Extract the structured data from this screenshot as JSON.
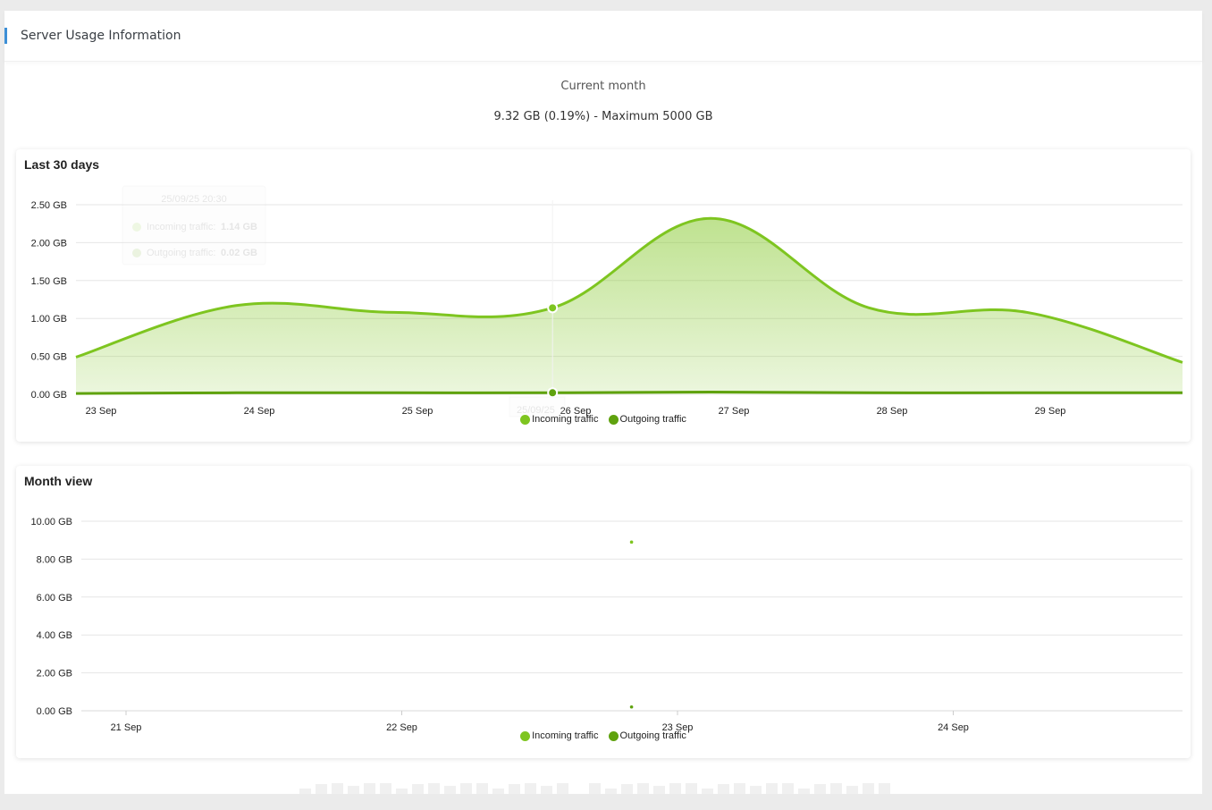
{
  "header": {
    "title": "Server Usage Information"
  },
  "summary": {
    "label": "Current month",
    "value": "9.32 GB (0.19%) - Maximum 5000 GB"
  },
  "colors": {
    "incoming": "#7ec520",
    "outgoing": "#5fa20e",
    "accent": "#3d8fd6"
  },
  "legend": {
    "incoming": "Incoming traffic",
    "outgoing": "Outgoing traffic"
  },
  "tooltip": {
    "title": "25/09/25 20:30",
    "incoming_label": "Incoming traffic:",
    "incoming_value": "1.14 GB",
    "outgoing_label": "Outgoing traffic:",
    "outgoing_value": "0.02 GB",
    "x_label": "25/09/25"
  },
  "chart_data": [
    {
      "type": "area",
      "title": "Last 30 days",
      "xlabel": "",
      "ylabel": "",
      "ylim": [
        0,
        2.5
      ],
      "y_ticks": [
        "0.00 GB",
        "0.50 GB",
        "1.00 GB",
        "1.50 GB",
        "2.00 GB",
        "2.50 GB"
      ],
      "x_ticks": [
        "23 Sep",
        "24 Sep",
        "25 Sep",
        "26 Sep",
        "27 Sep",
        "28 Sep",
        "29 Sep"
      ],
      "grid": true,
      "legend_position": "bottom-center",
      "series": [
        {
          "name": "Incoming traffic",
          "x": [
            "22/09/25 20:30",
            "23/09/25 20:30",
            "24/09/25 20:30",
            "25/09/25 20:30",
            "26/09/25 20:30",
            "27/09/25 20:30",
            "28/09/25 20:30",
            "29/09/25 20:30"
          ],
          "values": [
            0.49,
            1.17,
            1.08,
            1.14,
            2.32,
            1.14,
            1.08,
            0.42
          ]
        },
        {
          "name": "Outgoing traffic",
          "x": [
            "22/09/25 20:30",
            "23/09/25 20:30",
            "24/09/25 20:30",
            "25/09/25 20:30",
            "26/09/25 20:30",
            "27/09/25 20:30",
            "28/09/25 20:30",
            "29/09/25 20:30"
          ],
          "values": [
            0.01,
            0.02,
            0.02,
            0.02,
            0.03,
            0.02,
            0.02,
            0.02
          ]
        }
      ]
    },
    {
      "type": "scatter",
      "title": "Month view",
      "xlabel": "",
      "ylabel": "",
      "ylim": [
        0,
        10
      ],
      "y_ticks": [
        "0.00 GB",
        "2.00 GB",
        "4.00 GB",
        "6.00 GB",
        "8.00 GB",
        "10.00 GB"
      ],
      "x_ticks": [
        "21 Sep",
        "22 Sep",
        "23 Sep",
        "24 Sep"
      ],
      "grid": true,
      "legend_position": "bottom-center",
      "series": [
        {
          "name": "Incoming traffic",
          "x": [
            "22 Sep 20:00"
          ],
          "values": [
            8.9
          ]
        },
        {
          "name": "Outgoing traffic",
          "x": [
            "22 Sep 20:00"
          ],
          "values": [
            0.2
          ]
        }
      ]
    }
  ]
}
